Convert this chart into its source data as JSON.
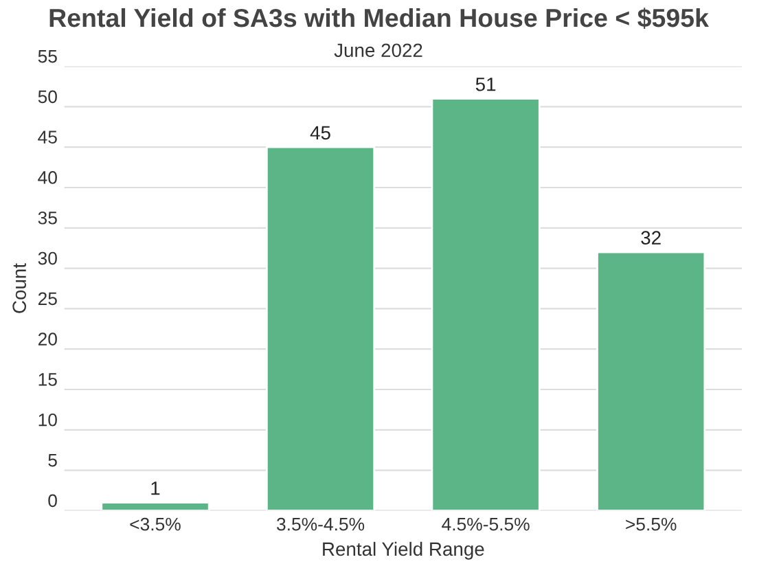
{
  "chart_data": {
    "type": "bar",
    "title": "Rental Yield of SA3s with Median House Price < $595k",
    "subtitle": "June 2022",
    "xlabel": "Rental Yield Range",
    "ylabel": "Count",
    "categories": [
      "<3.5%",
      "3.5%-4.5%",
      "4.5%-5.5%",
      ">5.5%"
    ],
    "values": [
      1,
      45,
      51,
      32
    ],
    "color": "#5bb587",
    "ylim": [
      0,
      55
    ],
    "yticks": [
      0,
      5,
      10,
      15,
      20,
      25,
      30,
      35,
      40,
      45,
      50,
      55
    ],
    "grid": "y",
    "data_labels": true
  }
}
